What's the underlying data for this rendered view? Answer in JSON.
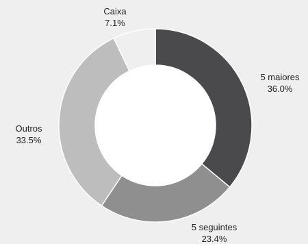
{
  "chart_data": {
    "type": "pie",
    "style": "donut",
    "slices": [
      {
        "label": "5 maiores",
        "value_text": "36.0%",
        "value": 36.0,
        "color": "#4a494b"
      },
      {
        "label": "5 seguintes",
        "value_text": "23.4%",
        "value": 23.4,
        "color": "#8f8f8f"
      },
      {
        "label": "Outros",
        "value_text": "33.5%",
        "value": 33.5,
        "color": "#bdbdbd"
      },
      {
        "label": "Caixa",
        "value_text": "7.1%",
        "value": 7.1,
        "color": "#efefef"
      }
    ],
    "start_angle": "12 o'clock",
    "direction": "clockwise"
  }
}
